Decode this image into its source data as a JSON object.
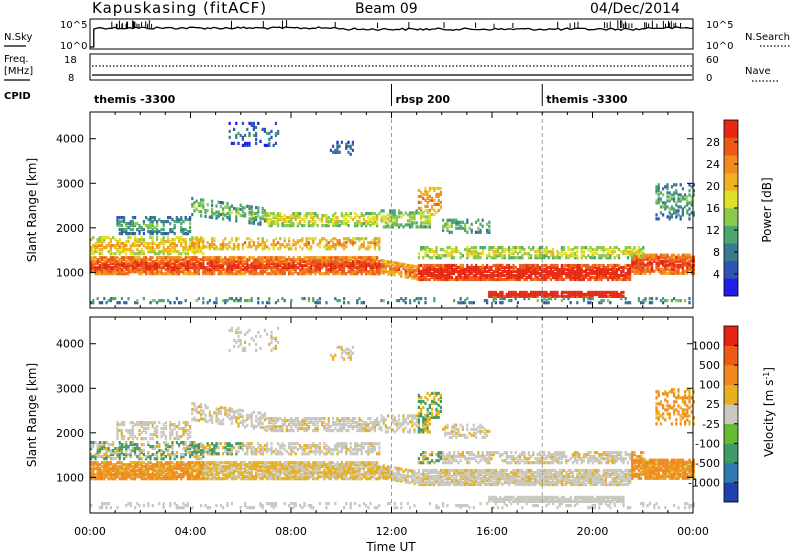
{
  "header": {
    "station": "Kapuskasing (fitACF)",
    "beam": "Beam 09",
    "date": "04/Dec/2014"
  },
  "left_labels": {
    "nsky": "N.Sky",
    "freq_line1": "Freq.",
    "freq_line2": "[MHz]",
    "cpid": "CPID"
  },
  "right_labels": {
    "nsearch": "N.Search",
    "nave": "Nave"
  },
  "noise_axis": {
    "left_ticks": [
      "10^5",
      "10^0"
    ],
    "right_ticks": [
      "10^5",
      "10^0"
    ]
  },
  "freq_axis": {
    "left_ticks": [
      "18",
      "8"
    ],
    "right_ticks": [
      "60",
      "0"
    ]
  },
  "cpid_segments": [
    {
      "label": "themis -3300",
      "start_hour": 0
    },
    {
      "label": "rbsp 200",
      "start_hour": 12
    },
    {
      "label": "themis -3300",
      "start_hour": 18
    }
  ],
  "chart_data": [
    {
      "type": "heatmap",
      "name": "power",
      "ylabel": "Slant Range [km]",
      "xlabel": "",
      "xlim_hours": [
        0,
        24
      ],
      "ylim_km": [
        200,
        4600
      ],
      "y_ticks": [
        1000,
        2000,
        3000,
        4000
      ],
      "colorbar": {
        "label": "Power [dB]",
        "ticks": [
          4,
          8,
          12,
          16,
          20,
          24,
          28
        ],
        "colors": [
          "#1e1ee6",
          "#2c55b4",
          "#3a7a8e",
          "#4aa86e",
          "#8cc84a",
          "#e0e02a",
          "#f0b020",
          "#f08c1e",
          "#ec5a1a",
          "#e62814"
        ]
      }
    },
    {
      "type": "heatmap",
      "name": "velocity",
      "ylabel": "Slant Range [km]",
      "xlabel": "Time UT",
      "xlim_hours": [
        0,
        24
      ],
      "ylim_km": [
        200,
        4600
      ],
      "y_ticks": [
        1000,
        2000,
        3000,
        4000
      ],
      "x_ticks": [
        "00:00",
        "04:00",
        "08:00",
        "12:00",
        "16:00",
        "20:00",
        "00:00"
      ],
      "colorbar": {
        "label": "Velocity [m s",
        "label_sup": "-1",
        "label_end": "]",
        "ticks": [
          1000,
          500,
          100,
          25,
          -25,
          -100,
          -500,
          -1000
        ],
        "colors": [
          "#2040b0",
          "#2e7ab0",
          "#3f9a6a",
          "#66bb33",
          "#c8c8c0",
          "#e6b020",
          "#f08a1c",
          "#ec5a18",
          "#e62212"
        ]
      }
    }
  ]
}
